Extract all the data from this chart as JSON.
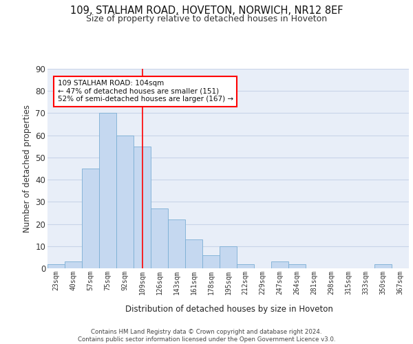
{
  "title1": "109, STALHAM ROAD, HOVETON, NORWICH, NR12 8EF",
  "title2": "Size of property relative to detached houses in Hoveton",
  "xlabel": "Distribution of detached houses by size in Hoveton",
  "ylabel": "Number of detached properties",
  "bin_labels": [
    "23sqm",
    "40sqm",
    "57sqm",
    "75sqm",
    "92sqm",
    "109sqm",
    "126sqm",
    "143sqm",
    "161sqm",
    "178sqm",
    "195sqm",
    "212sqm",
    "229sqm",
    "247sqm",
    "264sqm",
    "281sqm",
    "298sqm",
    "315sqm",
    "333sqm",
    "350sqm",
    "367sqm"
  ],
  "bar_heights": [
    2,
    3,
    45,
    70,
    60,
    55,
    27,
    22,
    13,
    6,
    10,
    2,
    0,
    3,
    2,
    0,
    0,
    0,
    0,
    2,
    0
  ],
  "bar_color": "#c5d8f0",
  "bar_edge_color": "#7aaed4",
  "grid_color": "#c8d4e8",
  "bg_color": "#e8eef8",
  "vline_x": 5,
  "vline_color": "red",
  "annotation_text": "109 STALHAM ROAD: 104sqm\n← 47% of detached houses are smaller (151)\n52% of semi-detached houses are larger (167) →",
  "annotation_box_color": "white",
  "annotation_box_edge": "red",
  "footer": "Contains HM Land Registry data © Crown copyright and database right 2024.\nContains public sector information licensed under the Open Government Licence v3.0.",
  "ylim": [
    0,
    90
  ],
  "yticks": [
    0,
    10,
    20,
    30,
    40,
    50,
    60,
    70,
    80,
    90
  ]
}
